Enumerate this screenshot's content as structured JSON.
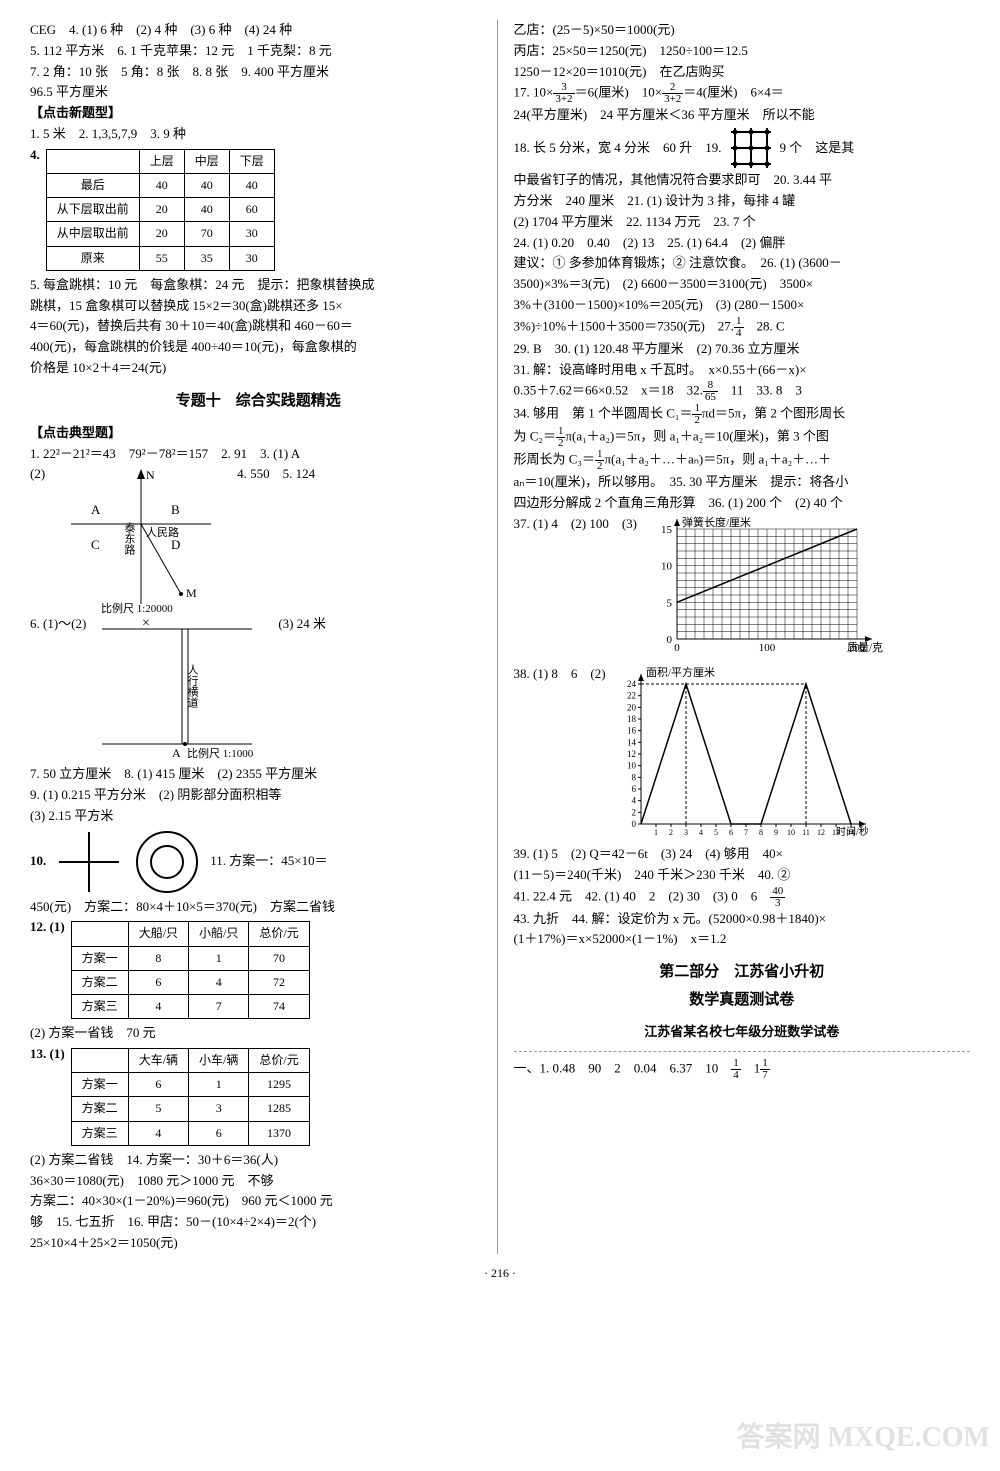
{
  "left": {
    "top_lines": [
      "CEG　4. (1) 6 种　(2) 4 种　(3) 6 种　(4) 24 种",
      "5. 112 平方米　6. 1 千克苹果：12 元　1 千克梨：8 元",
      "7. 2 角：10 张　5 角：8 张　8. 8 张　9. 400 平方厘米",
      "96.5 平方厘米"
    ],
    "sub1": "【点击新题型】",
    "line_after_sub1": "1. 5 米　2. 1,3,5,7,9　3. 9 种",
    "table4": {
      "label": "4.",
      "headers": [
        "",
        "上层",
        "中层",
        "下层"
      ],
      "rows": [
        [
          "最后",
          "40",
          "40",
          "40"
        ],
        [
          "从下层取出前",
          "20",
          "40",
          "60"
        ],
        [
          "从中层取出前",
          "20",
          "70",
          "30"
        ],
        [
          "原来",
          "55",
          "35",
          "30"
        ]
      ]
    },
    "lines5": [
      "5. 每盒跳棋：10 元　每盒象棋：24 元　提示：把象棋替换成",
      "跳棋，15 盒象棋可以替换成 15×2＝30(盒)跳棋还多 15×",
      "4＝60(元)，替换后共有 30＋10＝40(盒)跳棋和 460－60＝",
      "400(元)，每盒跳棋的价钱是 400÷40＝10(元)，每盒象棋的",
      "价格是 10×2＋4＝24(元)"
    ],
    "title10": "专题十　综合实践题精选",
    "sub2": "【点击典型题】",
    "line_typ1": "1. 22²－21²＝43　79²－78²＝157　2. 91　3. (1) A",
    "label_2": "(2)",
    "diagram_roads": {
      "labelA": "A",
      "labelB": "B",
      "labelC": "C",
      "labelD": "D",
      "road1": "泰东路",
      "road2": "人民路",
      "north": "N",
      "pointM": "M",
      "scale": "比例尺 1:20000",
      "side_text": "4. 550　5. 124"
    },
    "line6": "6. (1)～(2)",
    "diagram_walk": {
      "label": "人行横道",
      "pointA": "A",
      "scale": "比例尺 1:1000",
      "side": "(3) 24 米"
    },
    "lines789": [
      "7. 50 立方厘米　8. (1) 415 厘米　(2) 2355 平方厘米",
      "9. (1) 0.215 平方分米　(2) 阴影部分面积相等",
      "(3) 2.15 平方米"
    ],
    "label10": "10.",
    "line11_right": "11. 方案一：45×10＝",
    "line11_cont": "450(元)　方案二：80×4＋10×5＝370(元)　方案二省钱",
    "table12": {
      "label": "12. (1)",
      "headers": [
        "",
        "大船/只",
        "小船/只",
        "总价/元"
      ],
      "rows": [
        [
          "方案一",
          "8",
          "1",
          "70"
        ],
        [
          "方案二",
          "6",
          "4",
          "72"
        ],
        [
          "方案三",
          "4",
          "7",
          "74"
        ]
      ]
    },
    "line12b": "(2) 方案一省钱　70 元",
    "table13": {
      "label": "13. (1)",
      "headers": [
        "",
        "大车/辆",
        "小车/辆",
        "总价/元"
      ],
      "rows": [
        [
          "方案一",
          "6",
          "1",
          "1295"
        ],
        [
          "方案二",
          "5",
          "3",
          "1285"
        ],
        [
          "方案三",
          "4",
          "6",
          "1370"
        ]
      ]
    },
    "lines14": [
      "(2) 方案二省钱　14. 方案一：30＋6＝36(人)",
      "36×30＝1080(元)　1080 元＞1000 元　不够",
      "方案二：40×30×(1－20%)＝960(元)　960 元＜1000 元",
      "够　15. 七五折　16. 甲店：50－(10×4÷2×4)＝2(个)",
      "25×10×4＋25×2＝1050(元)"
    ]
  },
  "right": {
    "top_lines": [
      "乙店：(25－5)×50＝1000(元)",
      "丙店：25×50＝1250(元)　1250÷100＝12.5",
      "1250－12×20＝1010(元)　在乙店购买"
    ],
    "q17": {
      "frac1_num": "3",
      "frac1_den": "3+2",
      "frac2_num": "2",
      "frac2_den": "3+2",
      "text_a": "17. 10×",
      "text_b": "＝6(厘米)　10×",
      "text_c": "＝4(厘米)　6×4＝",
      "cont": "24(平方厘米)　24 平方厘米＜36 平方厘米　所以不能"
    },
    "q18_19": {
      "pre": "18. 长 5 分米，宽 4 分米　60 升　19.",
      "post": "9 个　这是其"
    },
    "lines20_26": [
      "中最省钉子的情况，其他情况符合要求即可　20. 3.44 平",
      "方分米　240 厘米　21. (1) 设计为 3 排，每排 4 罐",
      "(2) 1704 平方厘米　22. 1134 万元　23. 7 个",
      "24. (1) 0.20　0.40　(2) 13　25. (1) 64.4　(2) 偏胖",
      "建议：① 多参加体育锻炼；② 注意饮食。　26. (1) (3600－",
      "3500)×3%＝3(元)　(2) 6600－3500＝3100(元)　3500×",
      "3%＋(3100－1500)×10%＝205(元)　(3) (280－1500×"
    ],
    "q27": {
      "pre": "3%)÷10%＋1500＋3500＝7350(元)　27.",
      "frac_num": "1",
      "frac_den": "4",
      "post": "　28. C"
    },
    "lines29_31": [
      "29. B　30. (1) 120.48 平方厘米　(2) 70.36 立方厘米",
      "31. 解：设高峰时用电 x 千瓦时。　x×0.55＋(66－x)×"
    ],
    "q32": {
      "pre": "0.35＋7.62＝66×0.52　x＝18　32.",
      "frac_num": "8",
      "frac_den": "65",
      "post": "　11　33. 8　3"
    },
    "q34": {
      "pre": "34. 够用　第 1 个半圆周长 C₁＝",
      "frac_num": "1",
      "frac_den": "2",
      "mid": "πd＝5π，第 2 个图形周长",
      "line2_pre": "为 C₂＝",
      "line2_mid": "π(a₁＋a₂)＝5π，则 a₁＋a₂＝10(厘米)，第 3 个图",
      "line3_pre": "形周长为 C₃＝",
      "line3_mid": "π(a₁＋a₂＋…＋aₙ)＝5π，则 a₁＋a₂＋…＋"
    },
    "lines35_37": [
      "aₙ＝10(厘米)，所以够用。　35. 30 平方厘米　提示：将各小",
      "四边形分解成 2 个直角三角形算　36. (1) 200 个　(2) 40 个",
      "37. (1) 4　(2) 100　(3)"
    ],
    "chart37": {
      "ylabel": "弹簧长度/厘米",
      "xlabel": "质量/克",
      "yticks": [
        0,
        5,
        10,
        15
      ],
      "xticks": [
        0,
        100,
        200
      ],
      "points": [
        [
          0,
          5
        ],
        [
          100,
          10
        ],
        [
          200,
          15
        ]
      ],
      "grid_color": "#000",
      "bg_color": "#fff",
      "line_color": "#000"
    },
    "line38": "38. (1) 8　6　(2)",
    "chart38": {
      "ylabel": "面积/平方厘米",
      "xlabel": "时间/秒",
      "yticks": [
        0,
        2,
        4,
        6,
        8,
        10,
        12,
        14,
        16,
        18,
        20,
        22,
        24
      ],
      "xticks": [
        1,
        2,
        3,
        4,
        5,
        6,
        7,
        8,
        9,
        10,
        11,
        12,
        13,
        14
      ],
      "poly": [
        [
          0,
          0
        ],
        [
          3,
          24
        ],
        [
          6,
          0
        ],
        [
          8,
          0
        ],
        [
          11,
          24
        ],
        [
          14,
          0
        ]
      ],
      "line_color": "#000"
    },
    "lines39_44": [
      "39. (1) 5　(2) Q＝42－6t　(3) 24　(4) 够用　40×",
      "(11－5)＝240(千米)　240 千米＞230 千米　40. ②"
    ],
    "q41": {
      "text": "41. 22.4 元　42. (1) 40　2　(2) 30　(3) 0　6",
      "frac_num": "40",
      "frac_den": "3"
    },
    "lines43_44": [
      "43. 九折　44. 解：设定价为 x 元。(52000×0.98＋1840)×",
      "(1＋17%)＝x×52000×(1－1%)　x＝1.2"
    ],
    "part2_title": "第二部分　江苏省小升初",
    "part2_sub": "数学真题测试卷",
    "exam_title": "江苏省某名校七年级分班数学试卷",
    "exam_line1": {
      "pre": "一、1. 0.48　90　2　0.04　6.37　10　",
      "f1_num": "1",
      "f1_den": "4",
      "mid": "　1",
      "f2_num": "1",
      "f2_den": "7"
    }
  },
  "page_number": "· 216 ·",
  "watermark": "答案网 MXQE.COM"
}
